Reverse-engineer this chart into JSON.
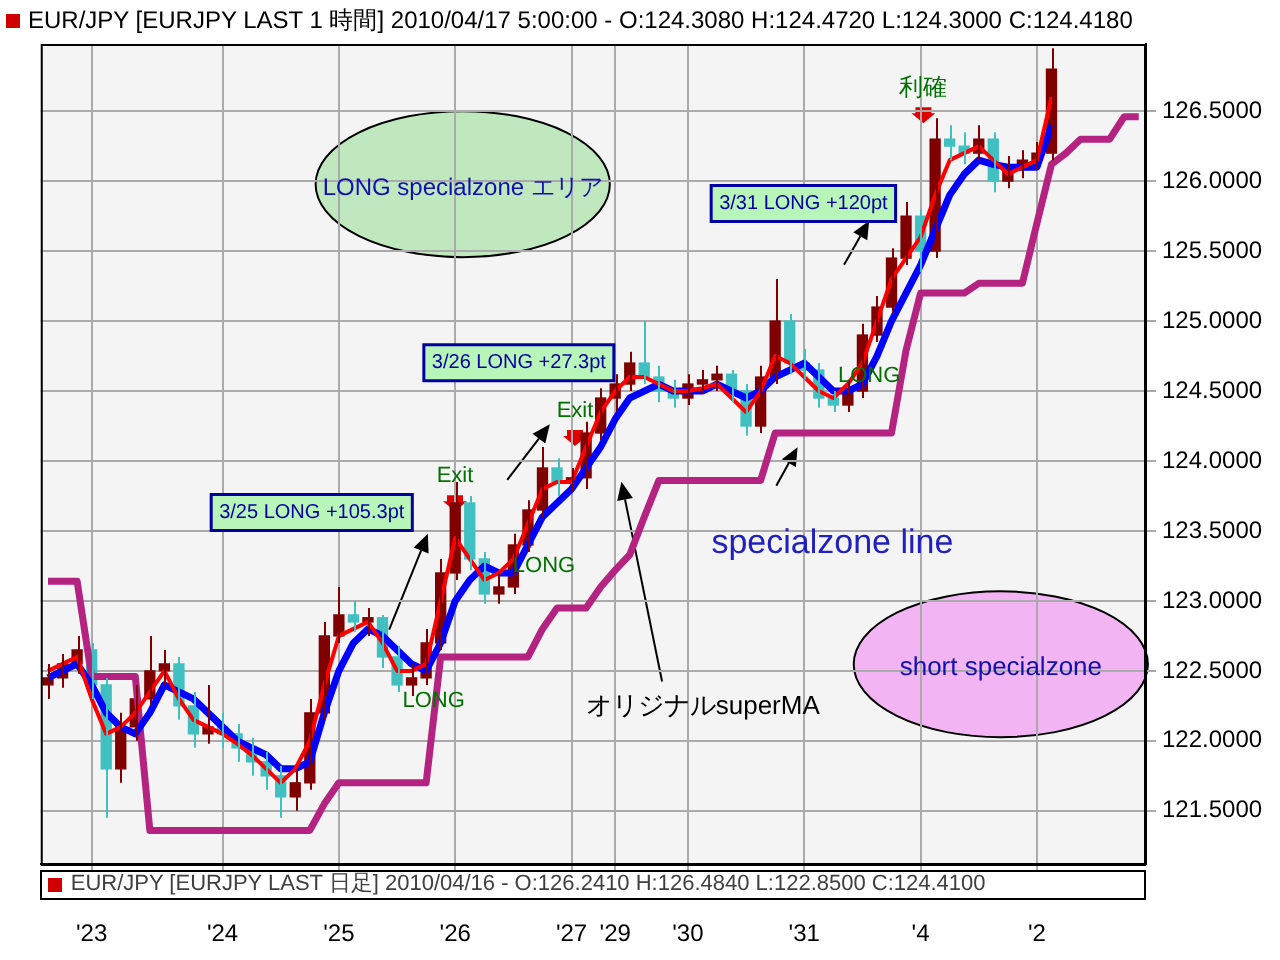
{
  "chart_data": {
    "type": "candlestick",
    "title": "EUR/JPY [EURJPY LAST 1 時間] 2010/04/17 5:00:00 - O:124.3080 H:124.4720 L:124.3000 C:124.4180",
    "annotations": [
      "LONG specialzone エリア",
      "short specialzone",
      "EUR/JPY [EURJPY LAST 日足] 2010/04/16 - O:126.2410 H:126.4840 L:122.8500 C:124.4100",
      "3/25 LONG +105.3pt",
      "3/26 LONG +27.3pt",
      "3/31 LONG +120pt",
      "Exit",
      "Exit",
      "利確",
      "LONG",
      "LONG",
      "LONG",
      "specialzone line",
      "オリジナルsuperMA"
    ],
    "categories": [
      null,
      null,
      null,
      "'23",
      null,
      null,
      null,
      null,
      null,
      null,
      null,
      null,
      "'24",
      null,
      null,
      null,
      null,
      null,
      null,
      null,
      "'25",
      null,
      null,
      null,
      null,
      null,
      null,
      null,
      "'26",
      null,
      null,
      null,
      null,
      null,
      null,
      null,
      "'27",
      null,
      null,
      "'29",
      null,
      null,
      null,
      null,
      "'30",
      null,
      null,
      null,
      null,
      null,
      null,
      null,
      "'31",
      null,
      null,
      null,
      null,
      null,
      null,
      null,
      "'4",
      null,
      null,
      null,
      null,
      null,
      null,
      null,
      "'2",
      null,
      null,
      null,
      null,
      null,
      null,
      null
    ],
    "ohlc": [
      [
        122.4,
        122.55,
        122.3,
        122.45
      ],
      [
        122.45,
        122.62,
        122.38,
        122.55
      ],
      [
        122.55,
        122.75,
        122.48,
        122.65
      ],
      [
        122.65,
        122.7,
        122.3,
        122.4
      ],
      [
        122.4,
        122.45,
        121.45,
        121.8
      ],
      [
        121.8,
        122.2,
        121.7,
        122.1
      ],
      [
        122.1,
        122.4,
        122.0,
        122.3
      ],
      [
        122.3,
        122.75,
        122.25,
        122.5
      ],
      [
        122.5,
        122.65,
        122.4,
        122.55
      ],
      [
        122.55,
        122.6,
        122.15,
        122.25
      ],
      [
        122.25,
        122.35,
        121.95,
        122.05
      ],
      [
        122.05,
        122.4,
        121.98,
        122.1
      ],
      [
        122.1,
        122.2,
        121.95,
        122.05
      ],
      [
        122.05,
        122.12,
        121.85,
        121.95
      ],
      [
        121.95,
        122.02,
        121.75,
        121.85
      ],
      [
        121.85,
        121.92,
        121.65,
        121.75
      ],
      [
        121.75,
        121.82,
        121.45,
        121.6
      ],
      [
        121.6,
        121.8,
        121.5,
        121.7
      ],
      [
        121.7,
        122.3,
        121.65,
        122.2
      ],
      [
        122.2,
        122.85,
        122.15,
        122.75
      ],
      [
        122.75,
        123.1,
        122.7,
        122.9
      ],
      [
        122.9,
        123.0,
        122.78,
        122.85
      ],
      [
        122.85,
        122.95,
        122.75,
        122.88
      ],
      [
        122.88,
        122.9,
        122.52,
        122.6
      ],
      [
        122.6,
        122.68,
        122.35,
        122.4
      ],
      [
        122.4,
        122.55,
        122.32,
        122.45
      ],
      [
        122.45,
        122.8,
        122.4,
        122.7
      ],
      [
        122.7,
        123.3,
        122.65,
        123.2
      ],
      [
        123.2,
        123.85,
        123.15,
        123.7
      ],
      [
        123.7,
        123.75,
        123.22,
        123.3
      ],
      [
        123.3,
        123.35,
        122.98,
        123.05
      ],
      [
        123.05,
        123.2,
        122.98,
        123.1
      ],
      [
        123.1,
        123.48,
        123.05,
        123.4
      ],
      [
        123.4,
        123.72,
        123.35,
        123.65
      ],
      [
        123.65,
        124.1,
        123.6,
        123.95
      ],
      [
        123.95,
        124.02,
        123.75,
        123.85
      ],
      [
        123.85,
        123.95,
        123.78,
        123.88
      ],
      [
        123.88,
        124.28,
        123.8,
        124.2
      ],
      [
        124.2,
        124.52,
        124.15,
        124.45
      ],
      [
        124.45,
        124.62,
        124.35,
        124.55
      ],
      [
        124.55,
        124.78,
        124.5,
        124.7
      ],
      [
        124.7,
        125.0,
        124.55,
        124.6
      ],
      [
        124.6,
        124.68,
        124.42,
        124.5
      ],
      [
        124.5,
        124.58,
        124.38,
        124.45
      ],
      [
        124.45,
        124.62,
        124.4,
        124.55
      ],
      [
        124.55,
        124.65,
        124.48,
        124.58
      ],
      [
        124.58,
        124.68,
        124.5,
        124.62
      ],
      [
        124.62,
        124.65,
        124.42,
        124.5
      ],
      [
        124.5,
        124.55,
        124.18,
        124.25
      ],
      [
        124.25,
        124.68,
        124.2,
        124.6
      ],
      [
        124.6,
        125.3,
        124.55,
        125.0
      ],
      [
        125.0,
        125.05,
        124.62,
        124.7
      ],
      [
        124.7,
        124.8,
        124.58,
        124.65
      ],
      [
        124.65,
        124.7,
        124.38,
        124.45
      ],
      [
        124.45,
        124.5,
        124.35,
        124.4
      ],
      [
        124.4,
        124.58,
        124.35,
        124.5
      ],
      [
        124.5,
        124.98,
        124.45,
        124.9
      ],
      [
        124.9,
        125.18,
        124.85,
        125.1
      ],
      [
        125.1,
        125.52,
        125.05,
        125.45
      ],
      [
        125.45,
        125.85,
        125.4,
        125.75
      ],
      [
        125.75,
        125.8,
        125.35,
        125.5
      ],
      [
        125.5,
        126.45,
        125.45,
        126.3
      ],
      [
        126.3,
        126.4,
        126.15,
        126.25
      ],
      [
        126.25,
        126.35,
        126.12,
        126.2
      ],
      [
        126.2,
        126.4,
        126.15,
        126.3
      ],
      [
        126.3,
        126.35,
        125.92,
        126.0
      ],
      [
        126.0,
        126.18,
        125.95,
        126.1
      ],
      [
        126.1,
        126.22,
        126.02,
        126.15
      ],
      [
        126.15,
        126.28,
        126.08,
        126.2
      ],
      [
        126.2,
        126.95,
        126.15,
        126.8
      ],
      null,
      null,
      null,
      null,
      null,
      null
    ],
    "colors": [
      "#800000",
      "#800000",
      "#800000",
      "#40c0c0",
      "#40c0c0",
      "#800000",
      "#800000",
      "#800000",
      "#800000",
      "#40c0c0",
      "#40c0c0",
      "#800000",
      "#40c0c0",
      "#40c0c0",
      "#40c0c0",
      "#40c0c0",
      "#40c0c0",
      "#800000",
      "#800000",
      "#800000",
      "#800000",
      "#40c0c0",
      "#800000",
      "#40c0c0",
      "#40c0c0",
      "#800000",
      "#800000",
      "#800000",
      "#800000",
      "#40c0c0",
      "#40c0c0",
      "#800000",
      "#800000",
      "#800000",
      "#800000",
      "#40c0c0",
      "#800000",
      "#800000",
      "#800000",
      "#800000",
      "#800000",
      "#40c0c0",
      "#40c0c0",
      "#40c0c0",
      "#800000",
      "#800000",
      "#800000",
      "#40c0c0",
      "#40c0c0",
      "#800000",
      "#800000",
      "#40c0c0",
      "#40c0c0",
      "#40c0c0",
      "#40c0c0",
      "#800000",
      "#800000",
      "#800000",
      "#800000",
      "#800000",
      "#40c0c0",
      "#800000",
      "#40c0c0",
      "#40c0c0",
      "#800000",
      "#40c0c0",
      "#800000",
      "#800000",
      "#800000",
      "#800000",
      null,
      null,
      null,
      null,
      null,
      null
    ],
    "series": [
      {
        "type": "line",
        "color": "#b4237f",
        "values": [
          123.14,
          123.14,
          123.14,
          122.46,
          122.46,
          122.46,
          122.46,
          121.36,
          121.36,
          121.36,
          121.36,
          121.36,
          121.36,
          121.36,
          121.36,
          121.36,
          121.36,
          121.36,
          121.36,
          121.55,
          121.7,
          121.7,
          121.7,
          121.7,
          121.7,
          121.7,
          121.7,
          122.6,
          122.6,
          122.6,
          122.6,
          122.6,
          122.6,
          122.6,
          122.8,
          122.95,
          122.95,
          122.95,
          123.1,
          123.22,
          123.33,
          123.6,
          123.86,
          123.86,
          123.86,
          123.86,
          123.86,
          123.86,
          123.86,
          123.86,
          124.2,
          124.2,
          124.2,
          124.2,
          124.2,
          124.2,
          124.2,
          124.2,
          124.2,
          124.79,
          125.2,
          125.2,
          125.2,
          125.2,
          125.27,
          125.27,
          125.27,
          125.27,
          125.7,
          126.12,
          126.2,
          126.3,
          126.3,
          126.3,
          126.46,
          126.46
        ]
      },
      {
        "type": "line",
        "color": "#0000ff",
        "values": [
          122.45,
          122.5,
          122.55,
          122.4,
          122.2,
          122.1,
          122.05,
          122.2,
          122.4,
          122.35,
          122.3,
          122.2,
          122.1,
          122.0,
          121.95,
          121.9,
          121.8,
          121.8,
          121.85,
          122.2,
          122.5,
          122.7,
          122.8,
          122.75,
          122.65,
          122.55,
          122.5,
          122.7,
          123.0,
          123.15,
          123.25,
          123.2,
          123.2,
          123.4,
          123.6,
          123.7,
          123.8,
          123.95,
          124.1,
          124.3,
          124.45,
          124.5,
          124.55,
          124.5,
          124.5,
          124.5,
          124.55,
          124.5,
          124.45,
          124.5,
          124.6,
          124.65,
          124.7,
          124.6,
          124.5,
          124.5,
          124.55,
          124.75,
          125.0,
          125.2,
          125.4,
          125.65,
          125.9,
          126.05,
          126.15,
          126.12,
          126.1,
          126.1,
          126.1,
          126.4,
          null,
          null,
          null,
          null,
          null,
          null
        ]
      },
      {
        "type": "line",
        "color": "#ff0000",
        "values": [
          122.5,
          122.55,
          122.6,
          122.3,
          122.05,
          122.1,
          122.2,
          122.35,
          122.5,
          122.3,
          122.15,
          122.1,
          122.05,
          121.98,
          121.9,
          121.8,
          121.7,
          121.8,
          122.0,
          122.4,
          122.75,
          122.8,
          122.85,
          122.7,
          122.5,
          122.5,
          122.55,
          123.0,
          123.45,
          123.3,
          123.15,
          123.2,
          123.3,
          123.55,
          123.8,
          123.85,
          123.85,
          124.1,
          124.35,
          124.5,
          124.6,
          124.6,
          124.55,
          124.5,
          124.5,
          124.52,
          124.55,
          124.45,
          124.35,
          124.5,
          124.75,
          124.7,
          124.6,
          124.5,
          124.45,
          124.55,
          124.7,
          125.0,
          125.3,
          125.45,
          125.6,
          125.9,
          126.15,
          126.2,
          126.25,
          126.15,
          126.05,
          126.1,
          126.15,
          126.6,
          null,
          null,
          null,
          null,
          null,
          null
        ]
      }
    ],
    "ylim": [
      121.12,
      126.98
    ],
    "yticks": [
      {
        "value": 121.5,
        "label": "121.5000"
      },
      {
        "value": 122,
        "label": "122.0000"
      },
      {
        "value": 122.5,
        "label": "122.5000"
      },
      {
        "value": 123,
        "label": "123.0000"
      },
      {
        "value": 123.5,
        "label": "123.5000"
      },
      {
        "value": 124,
        "label": "124.0000"
      },
      {
        "value": 124.5,
        "label": "124.5000"
      },
      {
        "value": 125,
        "label": "125.0000"
      },
      {
        "value": 125.5,
        "label": "125.5000"
      },
      {
        "value": 126,
        "label": "126.0000"
      },
      {
        "value": 126.5,
        "label": "126.5000"
      }
    ],
    "grid": true
  }
}
